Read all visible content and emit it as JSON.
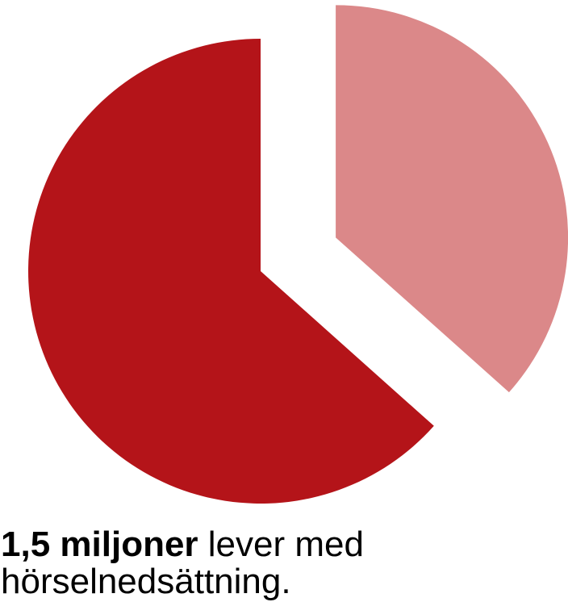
{
  "chart_data": {
    "type": "pie",
    "values": [
      36.6,
      63.4
    ],
    "colors": [
      "#DB8889",
      "#B41419"
    ],
    "exploded": [
      true,
      false
    ]
  },
  "caption": {
    "bold": "1,5 miljoner",
    "rest": "lever med hörselnedsättning."
  }
}
